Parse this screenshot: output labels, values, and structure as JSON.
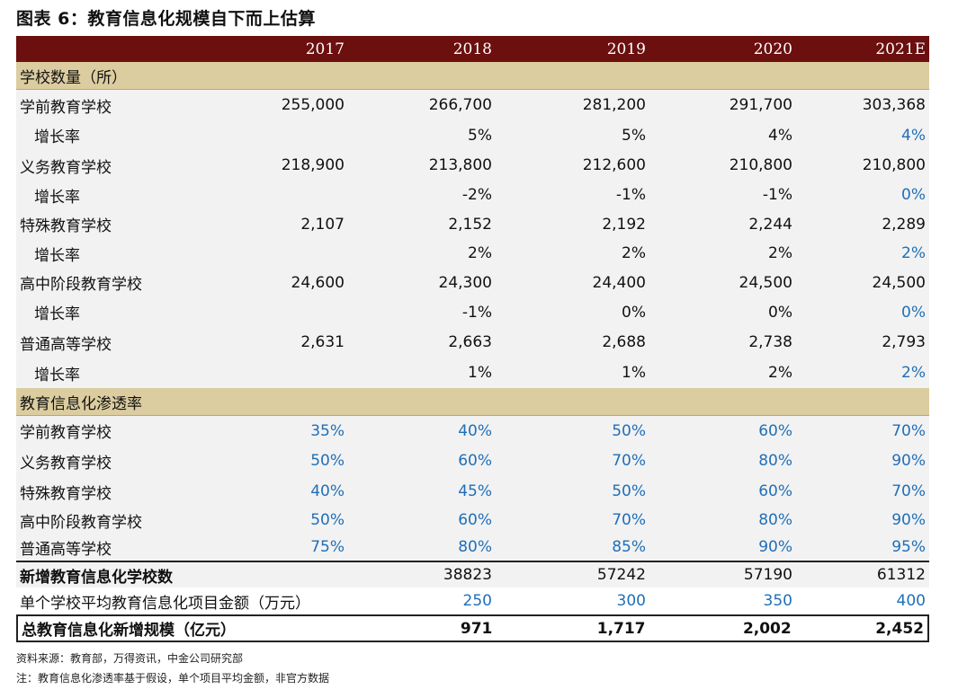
{
  "title": "图表 6：教育信息化规模自下而上估算",
  "header": [
    "",
    "2017",
    "2018",
    "2019",
    "2020",
    "2021E"
  ],
  "section1": "学校数量（所）",
  "schools": [
    {
      "name": "学前教育学校",
      "values": [
        "255,000",
        "266,700",
        "281,200",
        "291,700",
        "303,368"
      ],
      "growth": [
        "",
        "5%",
        "5%",
        "4%",
        "4%"
      ]
    },
    {
      "name": "义务教育学校",
      "values": [
        "218,900",
        "213,800",
        "212,600",
        "210,800",
        "210,800"
      ],
      "growth": [
        "",
        "-2%",
        "-1%",
        "-1%",
        "0%"
      ]
    },
    {
      "name": "特殊教育学校",
      "values": [
        "2,107",
        "2,152",
        "2,192",
        "2,244",
        "2,289"
      ],
      "growth": [
        "",
        "2%",
        "2%",
        "2%",
        "2%"
      ]
    },
    {
      "name": "高中阶段教育学校",
      "values": [
        "24,600",
        "24,300",
        "24,400",
        "24,500",
        "24,500"
      ],
      "growth": [
        "",
        "-1%",
        "0%",
        "0%",
        "0%"
      ]
    },
    {
      "name": "普通高等学校",
      "values": [
        "2,631",
        "2,663",
        "2,688",
        "2,738",
        "2,793"
      ],
      "growth": [
        "",
        "1%",
        "1%",
        "2%",
        "2%"
      ]
    }
  ],
  "growth_label": "增长率",
  "section2": "教育信息化渗透率",
  "penetration": [
    {
      "name": "学前教育学校",
      "values": [
        "35%",
        "40%",
        "50%",
        "60%",
        "70%"
      ]
    },
    {
      "name": "义务教育学校",
      "values": [
        "50%",
        "60%",
        "70%",
        "80%",
        "90%"
      ]
    },
    {
      "name": "特殊教育学校",
      "values": [
        "40%",
        "45%",
        "50%",
        "60%",
        "70%"
      ]
    },
    {
      "name": "高中阶段教育学校",
      "values": [
        "50%",
        "60%",
        "70%",
        "80%",
        "90%"
      ]
    },
    {
      "name": "普通高等学校",
      "values": [
        "75%",
        "80%",
        "85%",
        "90%",
        "95%"
      ]
    }
  ],
  "new_schools": {
    "name": "新增教育信息化学校数",
    "values": [
      "",
      "38823",
      "57242",
      "57190",
      "61312"
    ]
  },
  "avg_amount": {
    "name": "单个学校平均教育信息化项目金额（万元）",
    "values": [
      "",
      "250",
      "300",
      "350",
      "400"
    ]
  },
  "total": {
    "name": "总教育信息化新增规模（亿元）",
    "values": [
      "",
      "971",
      "1,717",
      "2,002",
      "2,452"
    ]
  },
  "source": "资料来源：教育部，万得资讯，中金公司研究部",
  "note": "注：教育信息化渗透率基于假设，单个项目平均金额，非官方数据",
  "colors": {
    "header_bg": "#6b0f0f",
    "section_bg": "#dccda0",
    "row_bg": "#f2f2f2",
    "estimate_blue": "#1f6fb8"
  }
}
